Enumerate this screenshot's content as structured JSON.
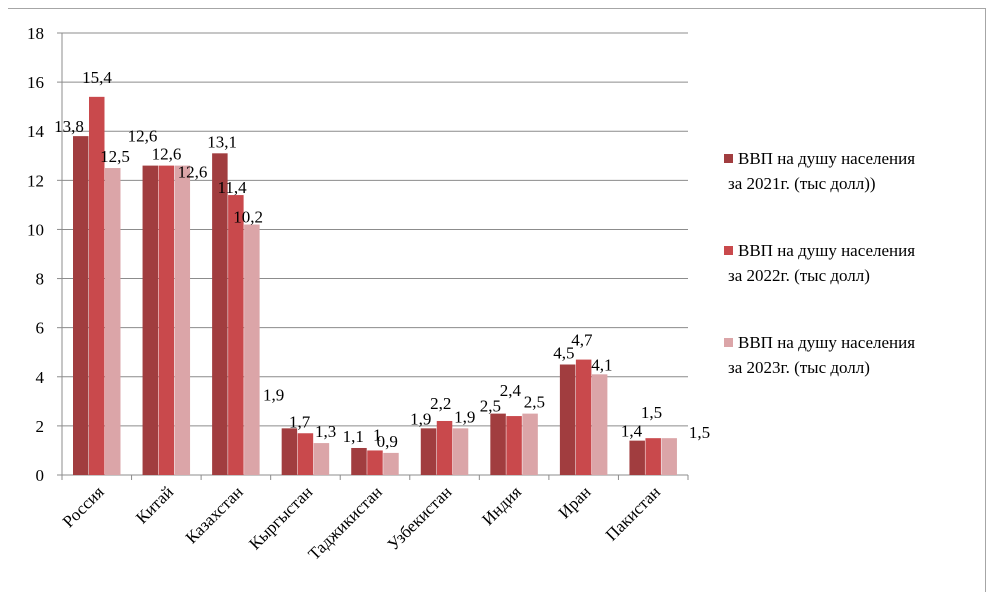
{
  "chart_data": {
    "type": "bar",
    "categories": [
      "Россия",
      "Китай",
      "Казахстан",
      "Кыргыстан",
      "Таджикистан",
      "Узбекистан",
      "Индия",
      "Иран",
      "Пакистан"
    ],
    "series": [
      {
        "name_lines": [
          "ВВП на душу населения",
          "за 2021г.  (тыс долл))"
        ],
        "color": "#a13d3f",
        "values": [
          13.8,
          12.6,
          13.1,
          1.9,
          1.1,
          1.9,
          2.5,
          4.5,
          1.4
        ],
        "labels": [
          "13,8",
          "12,6",
          "13,1",
          "1,9",
          "1,1",
          "1,9",
          "2,5",
          "4,5",
          "1,4"
        ]
      },
      {
        "name_lines": [
          "ВВП на душу населения",
          "за 2022г.  (тыс долл)"
        ],
        "color": "#c9494c",
        "values": [
          15.4,
          12.6,
          11.4,
          1.7,
          1.0,
          2.2,
          2.4,
          4.7,
          1.5
        ],
        "labels": [
          "15,4",
          "12,6",
          "11,4",
          "1,7",
          "1",
          "2,2",
          "2,4",
          "4,7",
          "1,5"
        ]
      },
      {
        "name_lines": [
          "ВВП на душу населения",
          "за 2023г.  (тыс долл)"
        ],
        "color": "#dba5a8",
        "values": [
          12.5,
          12.6,
          10.2,
          1.3,
          0.9,
          1.9,
          2.5,
          4.1,
          1.5
        ],
        "labels": [
          "12,5",
          "12,6",
          "10,2",
          "1,3",
          "0,9",
          "1,9",
          "2,5",
          "4,1",
          "1,5"
        ]
      }
    ],
    "y_ticks": [
      "0",
      "2",
      "4",
      "6",
      "8",
      "10",
      "12",
      "14",
      "16",
      "18"
    ],
    "ylim": [
      0,
      18
    ],
    "grid": true,
    "legend_position": "right"
  }
}
